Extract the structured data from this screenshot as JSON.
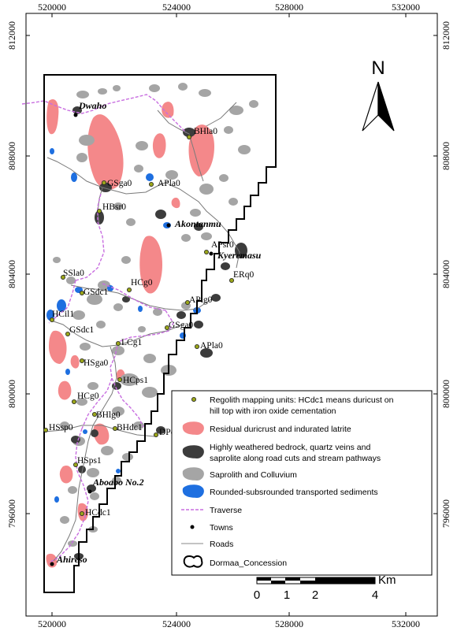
{
  "axes": {
    "x_ticks": [
      "520000",
      "524000",
      "528000",
      "532000"
    ],
    "y_ticks": [
      "812000",
      "808000",
      "804000",
      "800000",
      "796000"
    ]
  },
  "north_label": "N",
  "towns": [
    "Dwaho",
    "Akontanmu",
    "Kyeremasu",
    "Aboabo No.2",
    "Ahireso"
  ],
  "site_labels": [
    "BHla0",
    "GSga0",
    "APla0",
    "HBsr0",
    "APsr0",
    "ERq0",
    "SSla0",
    "GSdc1",
    "HCg0",
    "HCil1",
    "APlg0",
    "GSdc1",
    "GSga0",
    "LCg1",
    "APla0",
    "HSga0",
    "HCps1",
    "HCg0",
    "BHlg0",
    "HSsp0",
    "BHdc1",
    "DPq0",
    "HSps1",
    "HCdc1"
  ],
  "legend": {
    "items": [
      {
        "label": "Regolith mapping units: HCdc1 means duricust on",
        "label2": "hill top with iron oxide cementation",
        "symbol": "point",
        "color": "#9aa51a"
      },
      {
        "label": "Residual duricrust and indurated latrite",
        "label2": "",
        "symbol": "patch",
        "color": "#f4888a"
      },
      {
        "label": "Highly weathered bedrock, quartz veins and",
        "label2": "saprolite along road cuts and stream pathways",
        "symbol": "patch",
        "color": "#3c3c3c"
      },
      {
        "label": "Saprolith and Colluvium",
        "label2": "",
        "symbol": "patch",
        "color": "#a5a5a5"
      },
      {
        "label": "Rounded-subsrounded transported sediments",
        "label2": "",
        "symbol": "patch",
        "color": "#1e6fe0"
      },
      {
        "label": "Traverse",
        "label2": "",
        "symbol": "dashed-line",
        "color": "#c86ee0"
      },
      {
        "label": "Towns",
        "label2": "",
        "symbol": "dot",
        "color": "#000000"
      },
      {
        "label": "Roads",
        "label2": "",
        "symbol": "line",
        "color": "#888888"
      },
      {
        "label": "Dormaa_Concession",
        "label2": "",
        "symbol": "outline",
        "color": "#000000"
      }
    ]
  },
  "scale_bar": {
    "unit": "Km",
    "labels": [
      "0",
      "1",
      "2",
      "4"
    ]
  }
}
